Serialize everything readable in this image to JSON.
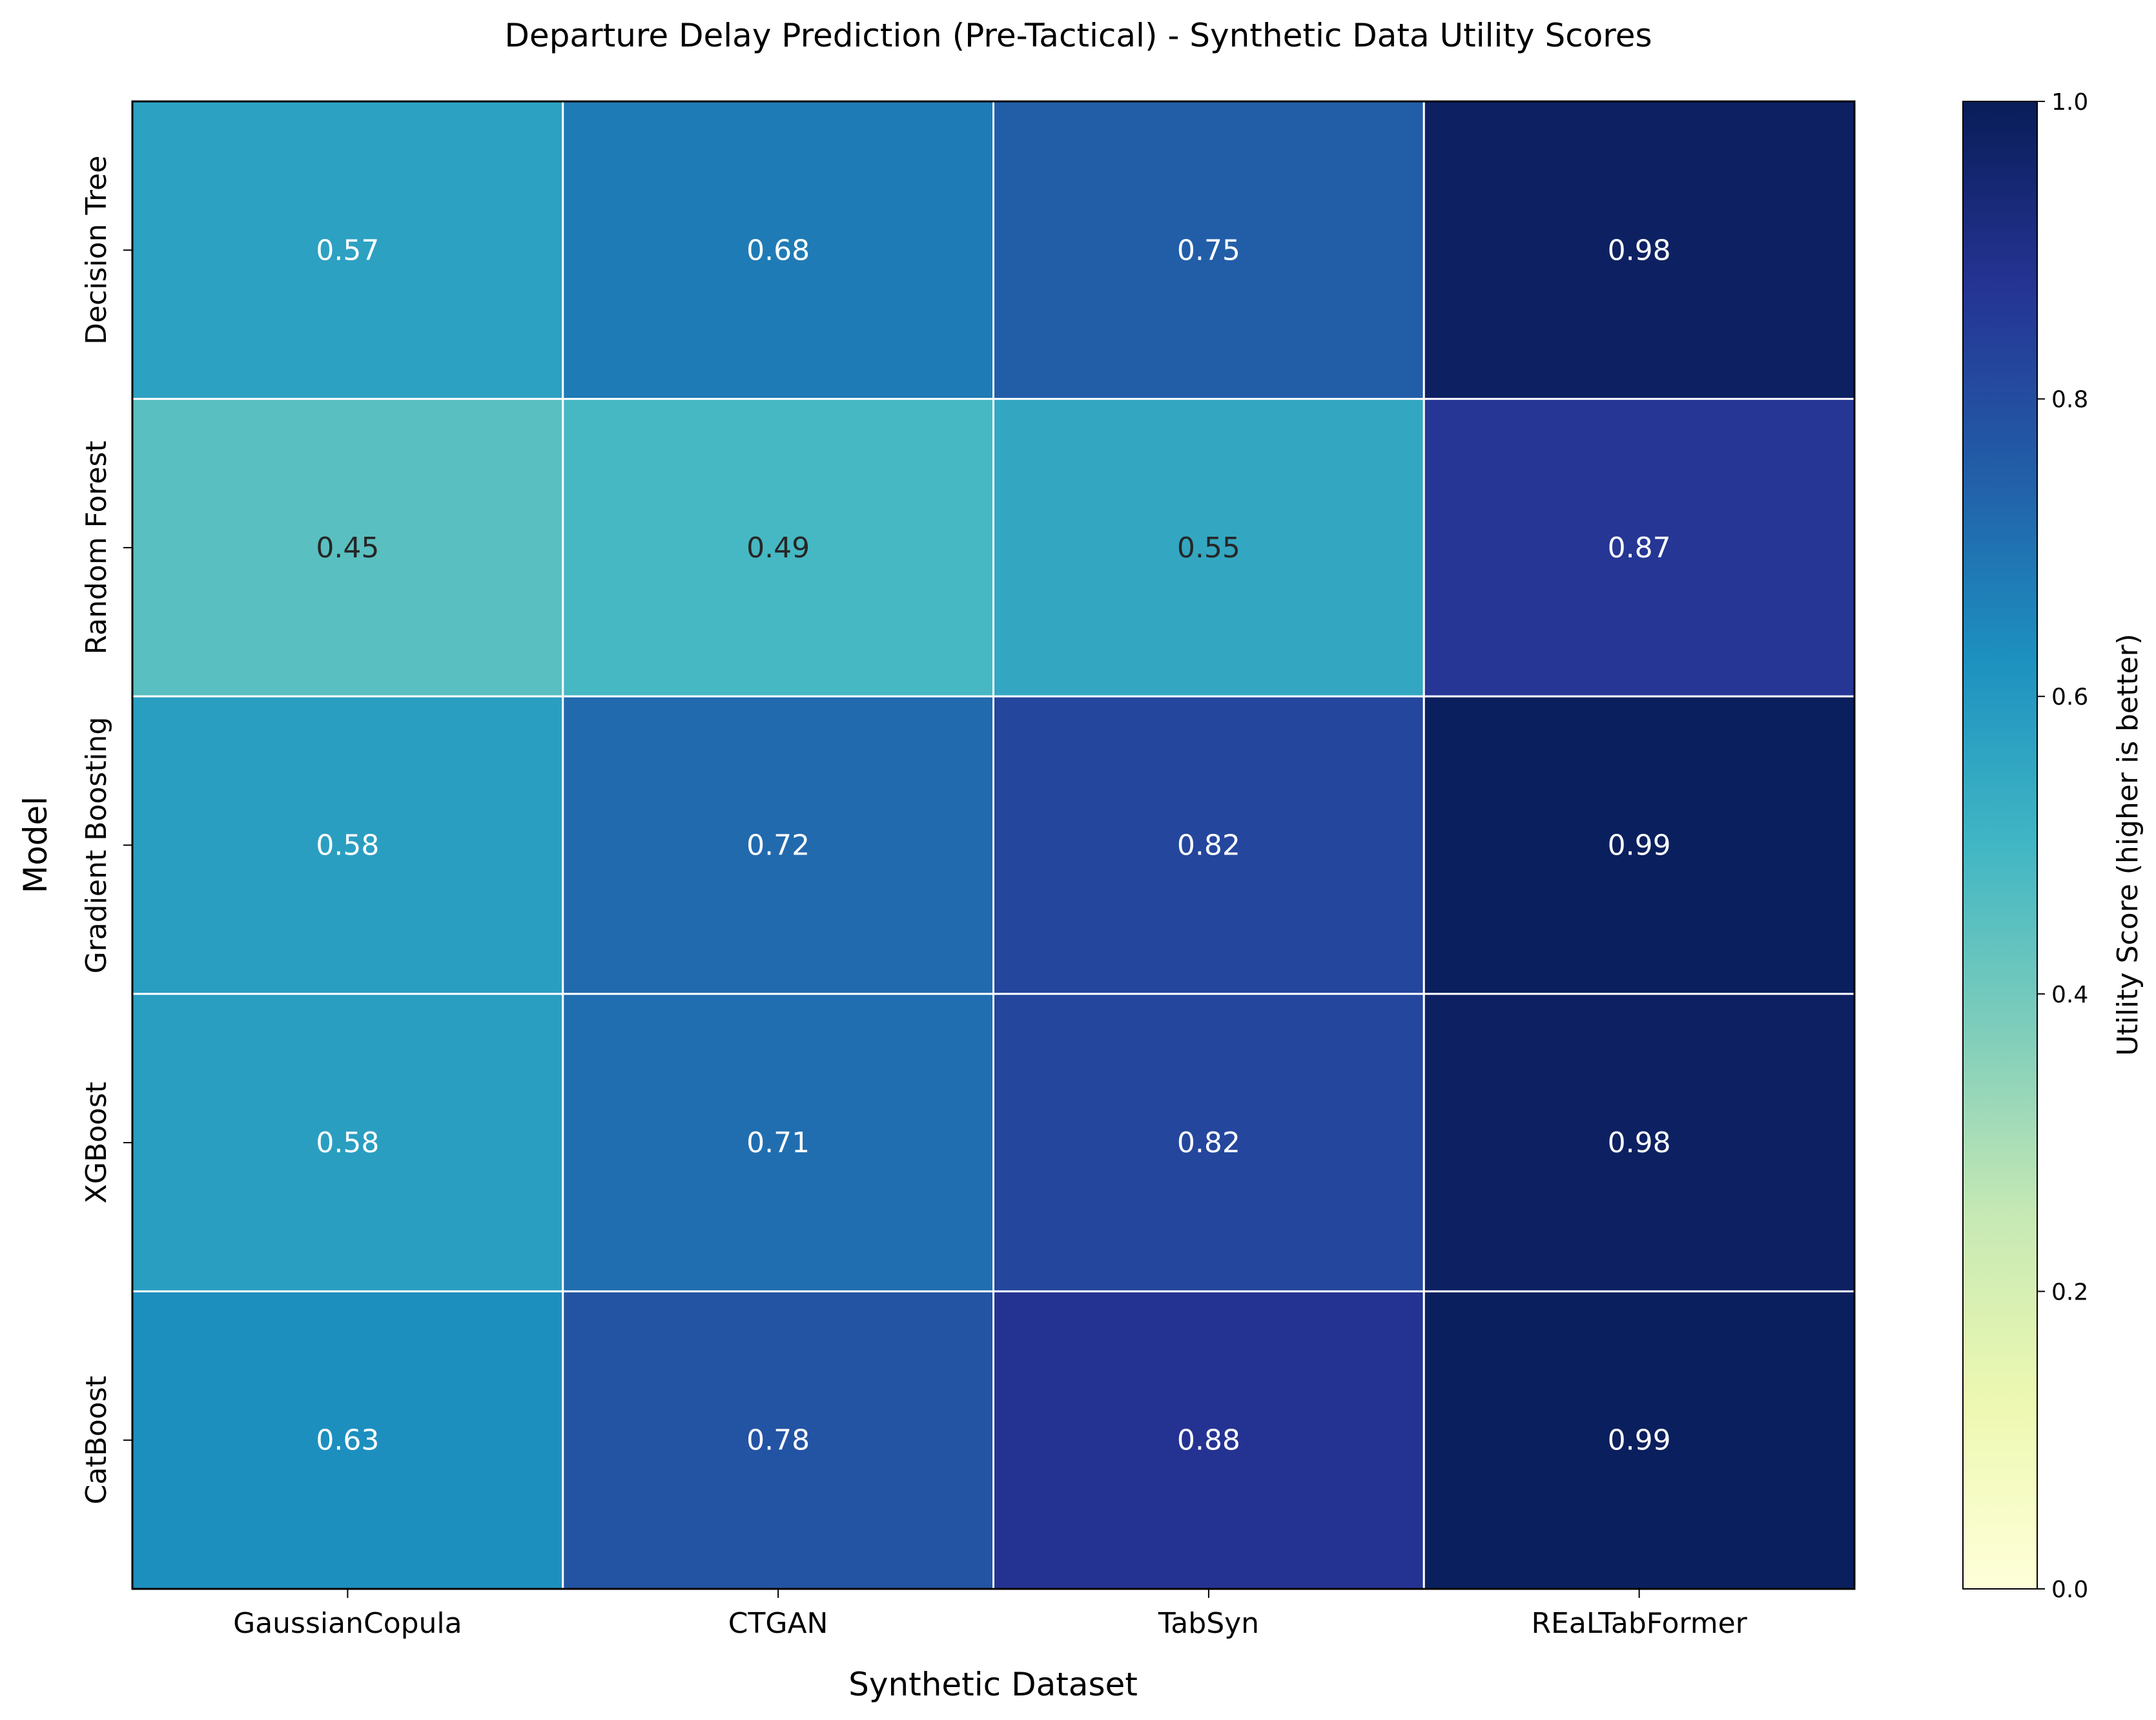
{
  "chart_data": {
    "type": "heatmap",
    "title": "Departure Delay Prediction (Pre-Tactical) - Synthetic Data Utility Scores",
    "xlabel": "Synthetic Dataset",
    "ylabel": "Model",
    "x_categories": [
      "GaussianCopula",
      "CTGAN",
      "TabSyn",
      "REaLTabFormer"
    ],
    "y_categories": [
      "Decision Tree",
      "Random Forest",
      "Gradient Boosting",
      "XGBoost",
      "CatBoost"
    ],
    "values": [
      [
        0.57,
        0.68,
        0.75,
        0.98
      ],
      [
        0.45,
        0.49,
        0.55,
        0.87
      ],
      [
        0.58,
        0.72,
        0.82,
        0.99
      ],
      [
        0.58,
        0.71,
        0.82,
        0.98
      ],
      [
        0.63,
        0.78,
        0.88,
        0.99
      ]
    ],
    "value_labels": [
      [
        "0.57",
        "0.68",
        "0.75",
        "0.98"
      ],
      [
        "0.45",
        "0.49",
        "0.55",
        "0.87"
      ],
      [
        "0.58",
        "0.72",
        "0.82",
        "0.99"
      ],
      [
        "0.58",
        "0.71",
        "0.82",
        "0.98"
      ],
      [
        "0.63",
        "0.78",
        "0.88",
        "0.99"
      ]
    ],
    "colormap": "YlGnBu",
    "vmin": 0,
    "vmax": 1,
    "colorbar": {
      "label": "Utility Score (higher is better)",
      "ticks": [
        0.0,
        0.2,
        0.4,
        0.6,
        0.8,
        1.0
      ],
      "tick_labels": [
        "0.0",
        "0.2",
        "0.4",
        "0.6",
        "0.8",
        "1.0"
      ]
    },
    "cell_border_color": "#ffffff",
    "grid": false
  }
}
